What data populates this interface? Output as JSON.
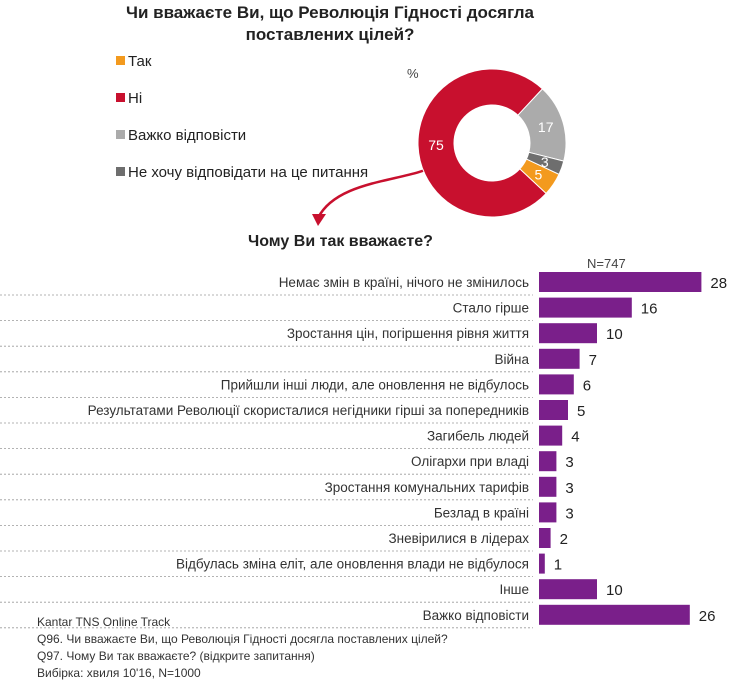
{
  "chart_data": [
    {
      "type": "pie",
      "title": "Чи вважаєте Ви, що Революція Гідності досягла поставлених цілей?",
      "unit_label": "%",
      "slices": [
        {
          "label": "Так",
          "value": 5,
          "color": "#F39A1E"
        },
        {
          "label": "Ні",
          "value": 75,
          "color": "#C8102E"
        },
        {
          "label": "Важко відповісти",
          "value": 17,
          "color": "#ABABAB"
        },
        {
          "label": "Не хочу відповідати на це питання",
          "value": 3,
          "color": "#6E6E6E"
        }
      ]
    },
    {
      "type": "bar",
      "orientation": "horizontal",
      "title": "Чому Ви так вважаєте?",
      "note": "N=747",
      "color": "#7A1F8A",
      "categories": [
        "Немає  змін в країні, нічого не змінилось",
        "Стало гірше",
        "Зростання цін, погіршення рівня життя",
        "Війна",
        "Прийшли інші люди, але оновлення не відбулось",
        "Результатами Революції скористалися негідники гірші за попередників",
        "Загибель людей",
        "Олігархи при владі",
        "Зростання комунальних тарифів",
        "Безлад в країні",
        "Зневірилися в лідерах",
        "Відбулась зміна еліт, але оновлення влади не відбулося",
        "Інше",
        "Важко відповісти"
      ],
      "values": [
        28,
        16,
        10,
        7,
        6,
        5,
        4,
        3,
        3,
        3,
        2,
        1,
        10,
        26
      ]
    }
  ],
  "legend_labels": [
    "Так",
    "Ні",
    "Важко відповісти",
    "Не хочу відповідати на це питання"
  ],
  "footer": {
    "source": "Kantar TNS Online Track",
    "q96": "Q96. Чи вважаєте Ви, що Революція Гідності досягла поставлених цілей?",
    "q97": "Q97. Чому Ви так вважаєте? (відкрите запитання)",
    "sample": "Вибірка: хвиля 10'16, N=1000"
  }
}
